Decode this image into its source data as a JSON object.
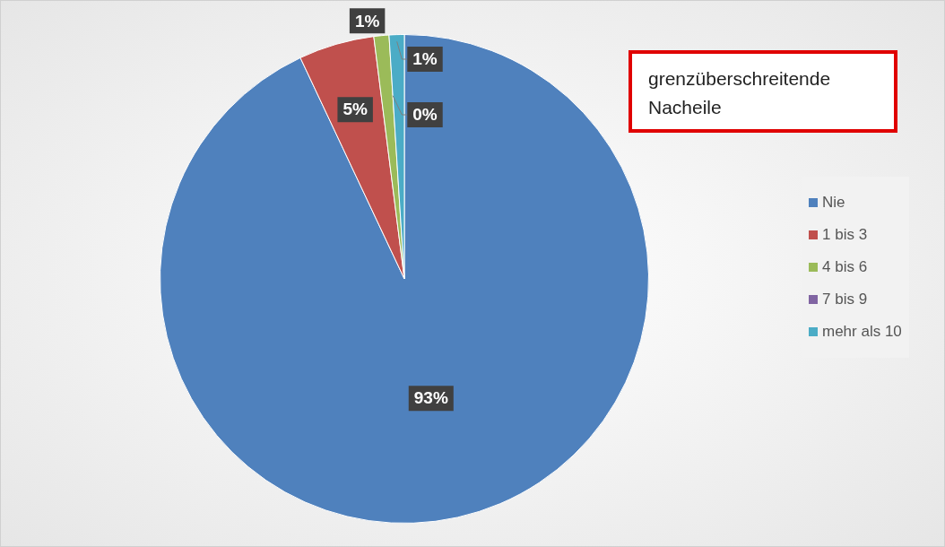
{
  "chart_data": {
    "type": "pie",
    "title": "grenzüberschreitende Nacheile",
    "categories": [
      "Nie",
      "1 bis 3",
      "4 bis 6",
      "7 bis 9",
      "mehr als 10"
    ],
    "values": [
      93,
      5,
      1,
      0,
      1
    ],
    "colors": [
      "#4f81bd",
      "#c0504d",
      "#9bbb59",
      "#8064a2",
      "#4bacc6"
    ],
    "value_labels": [
      "93%",
      "5%",
      "1%",
      "0%",
      "1%"
    ],
    "legend": "right"
  }
}
